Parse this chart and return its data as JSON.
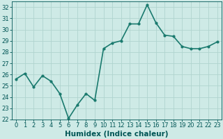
{
  "x": [
    0,
    1,
    2,
    3,
    4,
    5,
    6,
    7,
    8,
    9,
    10,
    11,
    12,
    13,
    14,
    15,
    16,
    17,
    18,
    19,
    20,
    21,
    22,
    23
  ],
  "y": [
    25.6,
    26.1,
    24.9,
    25.9,
    25.4,
    24.3,
    22.1,
    23.3,
    24.3,
    23.7,
    28.3,
    28.8,
    29.0,
    30.5,
    30.5,
    32.2,
    30.6,
    29.5,
    29.4,
    28.5,
    28.3,
    28.3,
    28.5,
    28.9
  ],
  "line_color": "#1a7a6e",
  "marker": "o",
  "marker_size": 2.0,
  "line_width": 1.2,
  "bg_color": "#ceeae6",
  "grid_color": "#b0d4cf",
  "xlabel": "Humidex (Indice chaleur)",
  "xlabel_color": "#005555",
  "xlabel_fontsize": 7.5,
  "tick_color": "#005555",
  "tick_fontsize": 6.0,
  "ylim": [
    22,
    32.5
  ],
  "yticks": [
    22,
    23,
    24,
    25,
    26,
    27,
    28,
    29,
    30,
    31,
    32
  ],
  "xlim": [
    -0.5,
    23.5
  ],
  "xticks": [
    0,
    1,
    2,
    3,
    4,
    5,
    6,
    7,
    8,
    9,
    10,
    11,
    12,
    13,
    14,
    15,
    16,
    17,
    18,
    19,
    20,
    21,
    22,
    23
  ]
}
